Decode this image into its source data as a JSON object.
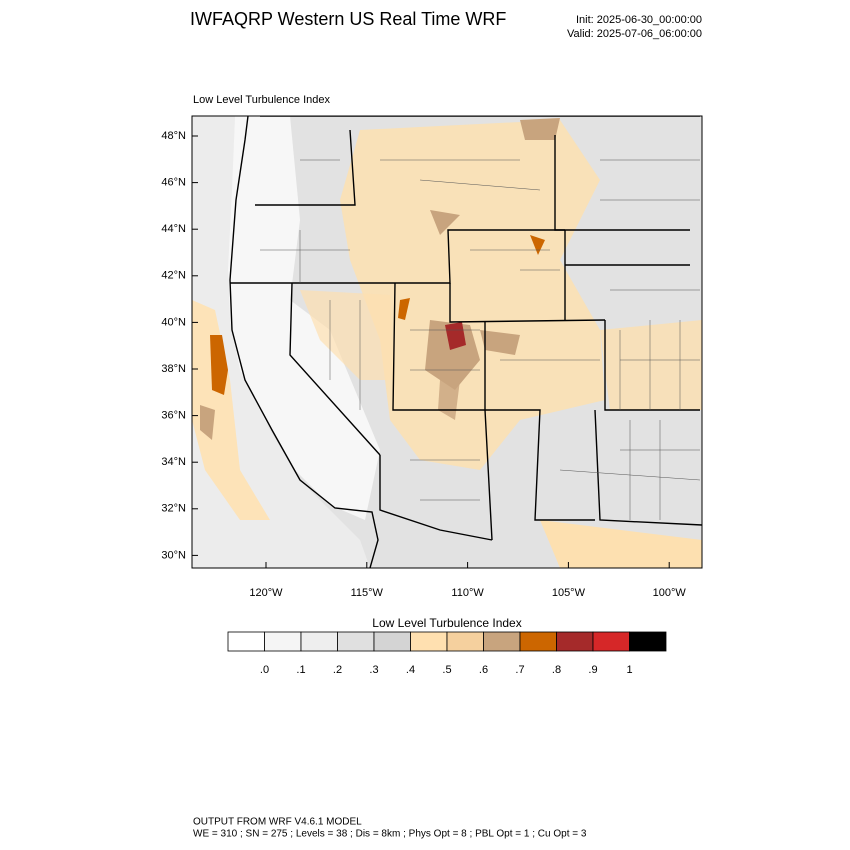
{
  "header": {
    "title": "IWFAQRP Western US Real Time WRF",
    "init": "Init: 2025-06-30_00:00:00",
    "valid": "Valid: 2025-07-06_06:00:00"
  },
  "map": {
    "title": "Low Level Turbulence Index",
    "lat_labels": [
      "48°N",
      "46°N",
      "44°N",
      "42°N",
      "40°N",
      "38°N",
      "36°N",
      "34°N",
      "32°N",
      "30°N"
    ],
    "lon_labels": [
      "120°W",
      "115°W",
      "110°W",
      "105°W",
      "100°W"
    ]
  },
  "colorbar": {
    "title": "Low Level Turbulence Index",
    "colors": [
      "#ffffff",
      "#f5f5f5",
      "#eeeeee",
      "#e0e0e0",
      "#d4d4d4",
      "#ffe0b0",
      "#f5d09e",
      "#c8a47e",
      "#cc6600",
      "#a52a2a",
      "#d62728",
      "#000000"
    ],
    "labels": [
      ".0",
      ".1",
      ".2",
      ".3",
      ".4",
      ".5",
      ".6",
      ".7",
      ".8",
      ".9",
      "1"
    ]
  },
  "footer": {
    "line1": "OUTPUT FROM WRF V4.6.1 MODEL",
    "line2": "WE = 310 ; SN = 275 ; Levels = 38 ; Dis = 8km ; Phys Opt = 8 ; PBL Opt = 1 ; Cu Opt = 3"
  }
}
